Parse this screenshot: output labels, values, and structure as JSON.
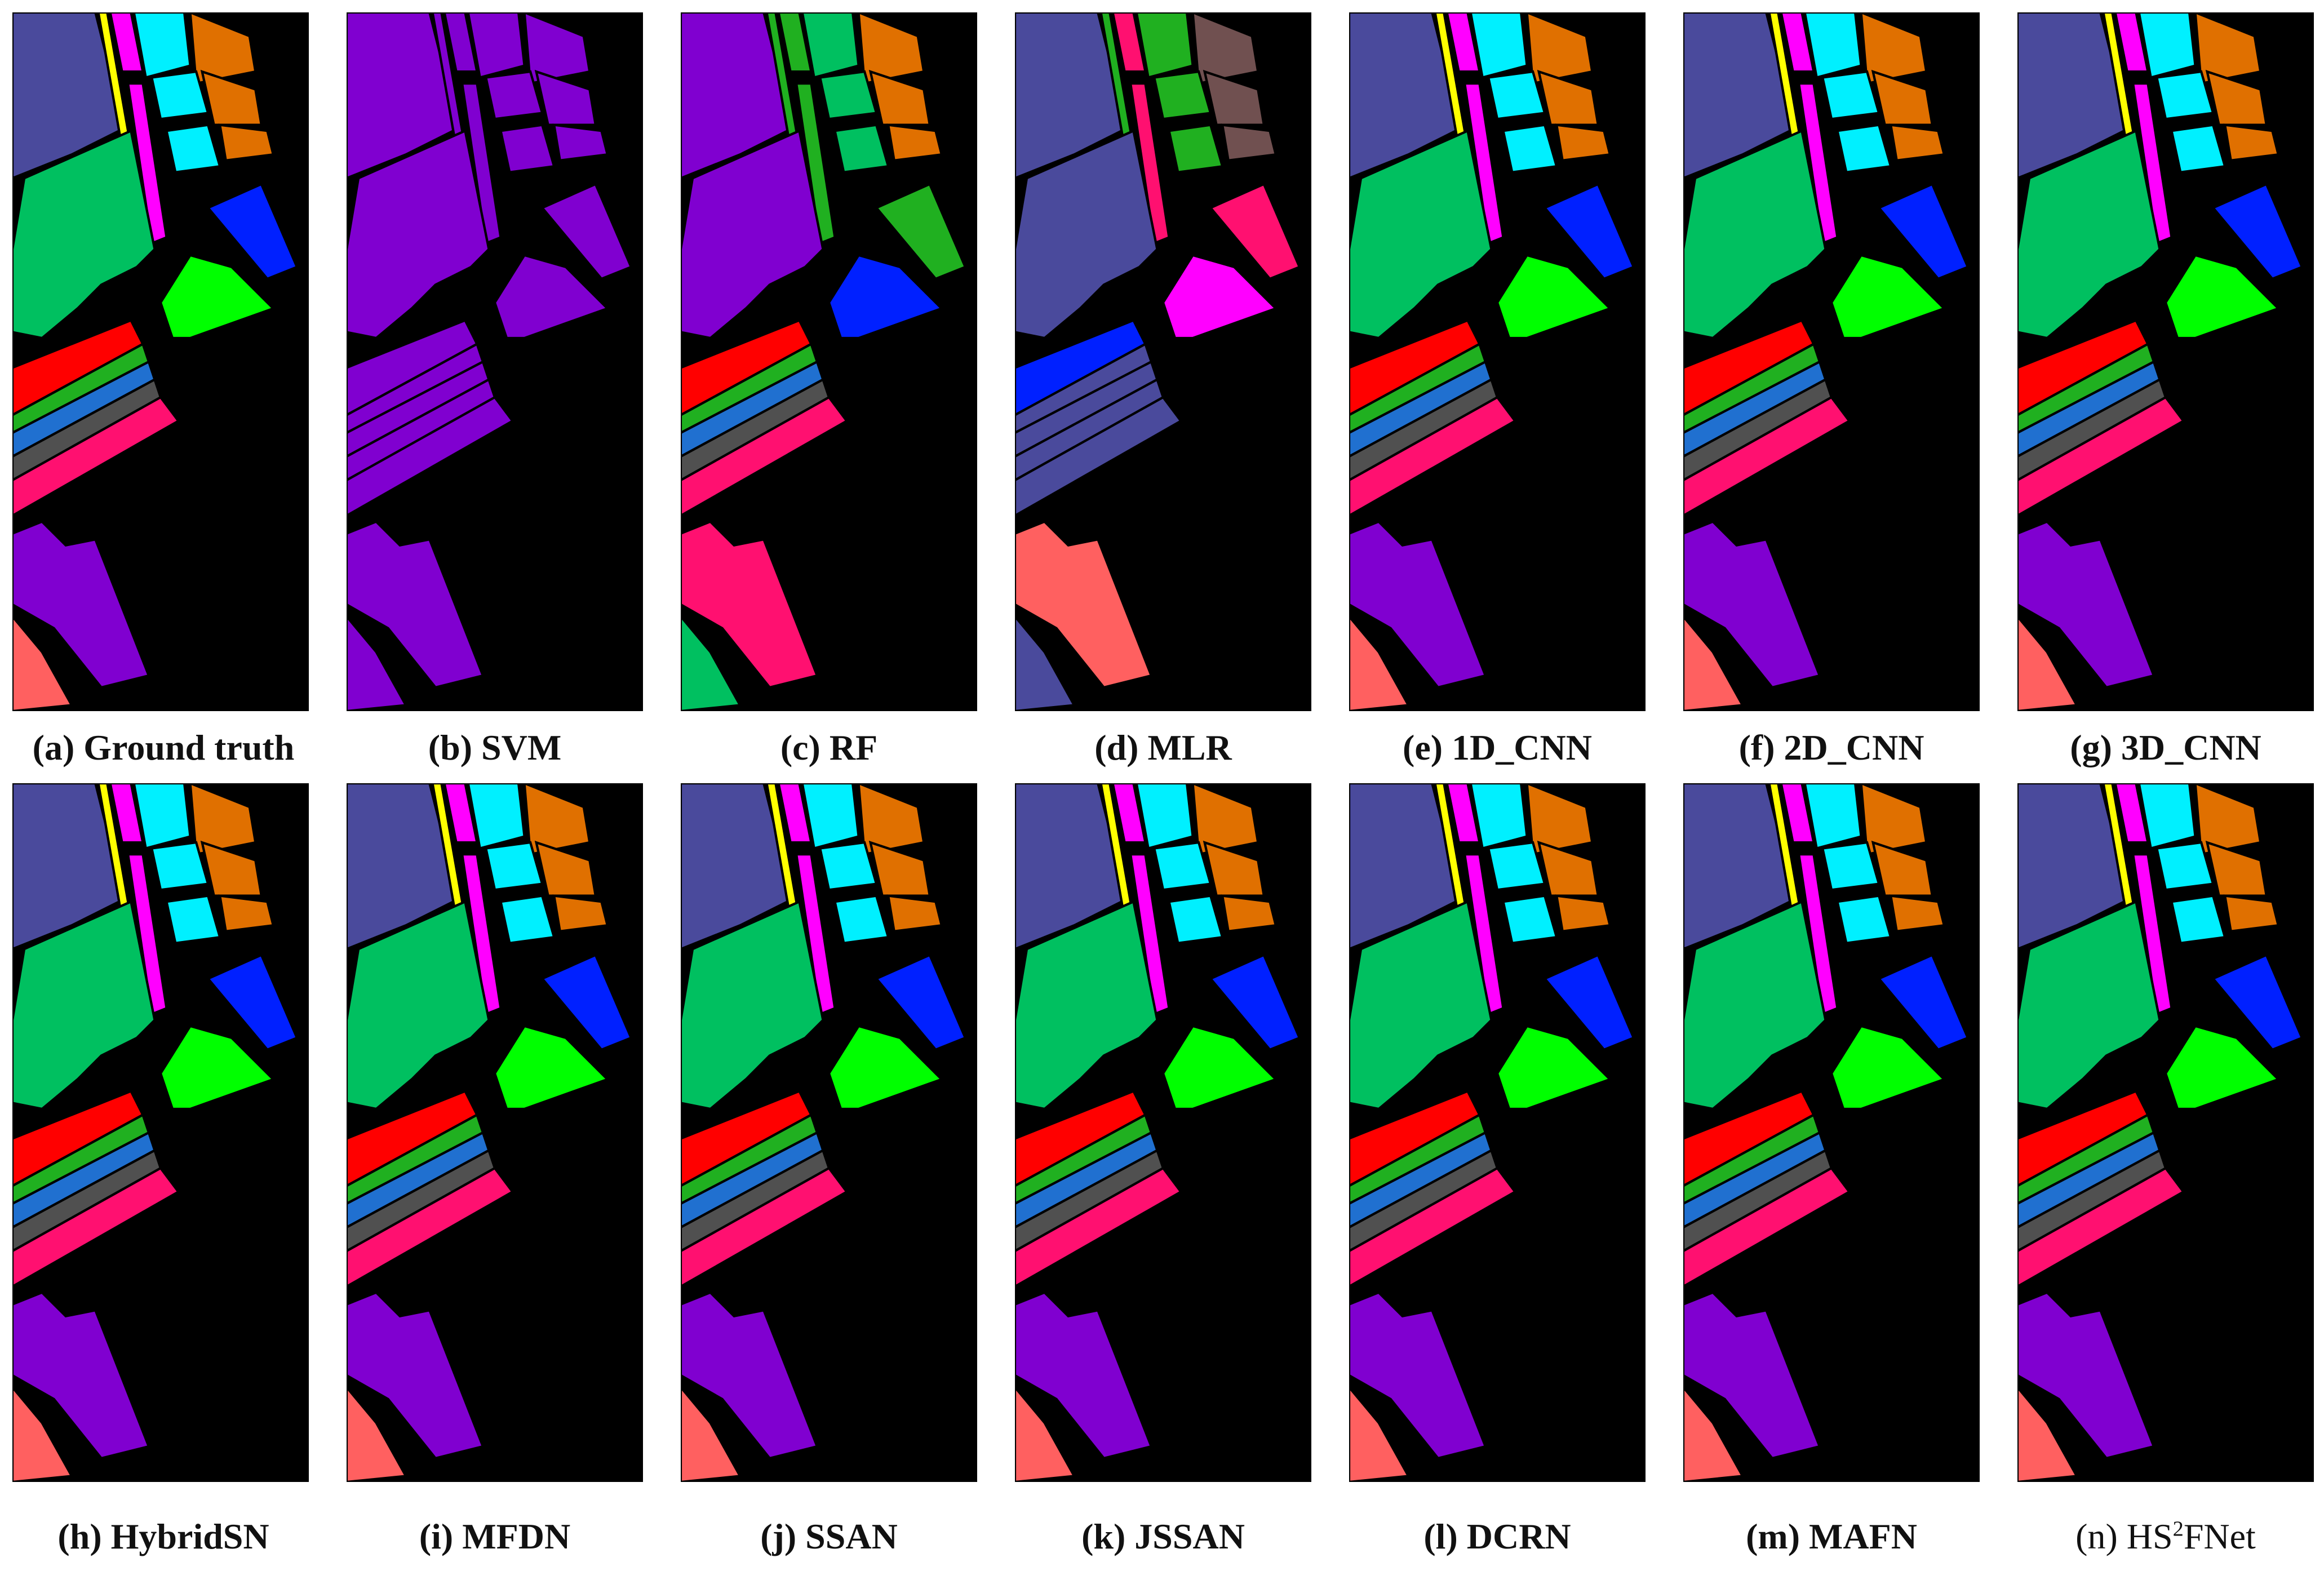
{
  "colors": {
    "background": "#000000",
    "c_slate": "#4a4a9c",
    "c_purple": "#8000d0",
    "c_green": "#00c060",
    "c_lime": "#00ff00",
    "c_blue": "#0020ff",
    "c_cyan": "#00f0ff",
    "c_orange": "#e07000",
    "c_magenta": "#ff00ff",
    "c_yellow": "#ffff00",
    "c_red": "#ff0000",
    "c_green2": "#20b020",
    "c_mblue": "#2070d0",
    "c_dgray": "#505050",
    "c_pink": "#ff1070",
    "c_salmon": "#ff6060",
    "c_brown": "#705050"
  },
  "panels": [
    {
      "label": "(a) Ground truth",
      "scheme": "gt"
    },
    {
      "label": "(b) SVM",
      "scheme": "svm"
    },
    {
      "label": "(c) RF",
      "scheme": "rf"
    },
    {
      "label": "(d) MLR",
      "scheme": "mlr"
    },
    {
      "label": "(e) 1D_CNN",
      "scheme": "gt"
    },
    {
      "label": "(f) 2D_CNN",
      "scheme": "gt"
    },
    {
      "label": "(g) 3D_CNN",
      "scheme": "gt"
    },
    {
      "label": "(h) HybridSN",
      "scheme": "gt"
    },
    {
      "label": "(i) MFDN",
      "scheme": "gt"
    },
    {
      "label": "(j) SSAN",
      "scheme": "gt"
    },
    {
      "label": "(k) JSSAN",
      "scheme": "gt"
    },
    {
      "label": "(l) DCRN",
      "scheme": "gt"
    },
    {
      "label": "(m) MAFN",
      "scheme": "gt"
    },
    {
      "label_main": "(n) HS",
      "label_sup": "2",
      "label_tail": "FNet",
      "scheme": "gt"
    }
  ]
}
